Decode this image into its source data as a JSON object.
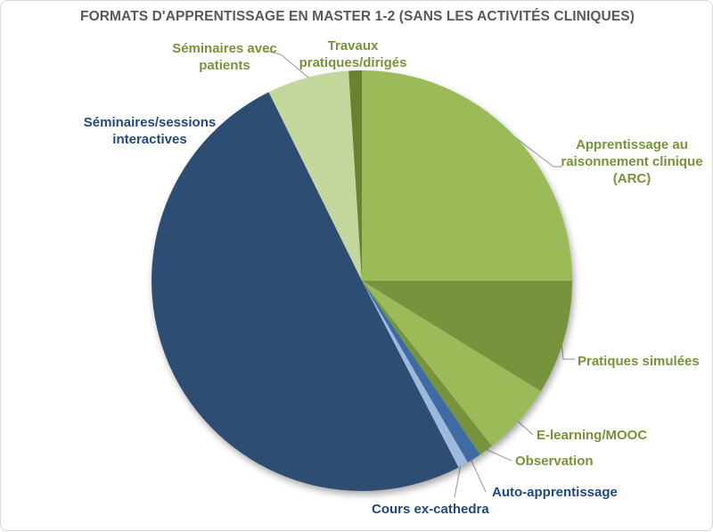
{
  "frame": {
    "background_color": "#FFFFFF",
    "border_color": "#D9D9D9"
  },
  "chart_data": {
    "type": "pie",
    "title": "FORMATS D'APPRENTISSAGE EN MASTER 1-2 (SANS LES ACTIVITÉS CLINIQUES)",
    "title_color": "#595959",
    "start_angle_deg": 0,
    "direction": "clockwise",
    "legend_position": "none",
    "data_labels": "category names outside slices, some with gray leader lines",
    "leader_line_color": "#A6A6A6",
    "slices": [
      {
        "id": "arc",
        "label": "Apprentissage au raisonnement clinique (ARC)",
        "value_pct": 25.0,
        "color": "#9BBB59",
        "label_color": "#76933C"
      },
      {
        "id": "pratiques-simulees",
        "label": "Pratiques simulées",
        "value_pct": 8.8,
        "color": "#77933C",
        "label_color": "#76933C"
      },
      {
        "id": "elearning-mooc",
        "label": "E-learning/MOOC",
        "value_pct": 5.6,
        "color": "#9BBB59",
        "label_color": "#76933C"
      },
      {
        "id": "observation",
        "label": "Observation",
        "value_pct": 1.1,
        "color": "#77933C",
        "label_color": "#76933C"
      },
      {
        "id": "auto-apprentissage",
        "label": "Auto-apprentissage",
        "value_pct": 1.1,
        "color": "#3F6BA5",
        "label_color": "#1F497D"
      },
      {
        "id": "cours-ex-cathedra",
        "label": "Cours ex-cathedra",
        "value_pct": 0.8,
        "color": "#9DB9DC",
        "label_color": "#1F497D"
      },
      {
        "id": "seminaires-interactives",
        "label": "Séminaires/sessions interactives",
        "value_pct": 50.3,
        "color": "#2E4D73",
        "label_color": "#1F497D"
      },
      {
        "id": "seminaires-patients",
        "label": "Séminaires avec patients",
        "value_pct": 6.3,
        "color": "#C3D69B",
        "label_color": "#76933C"
      },
      {
        "id": "travaux-pratiques",
        "label": "Travaux pratiques/dirigés",
        "value_pct": 1.0,
        "color": "#68822E",
        "label_color": "#76933C"
      }
    ]
  }
}
